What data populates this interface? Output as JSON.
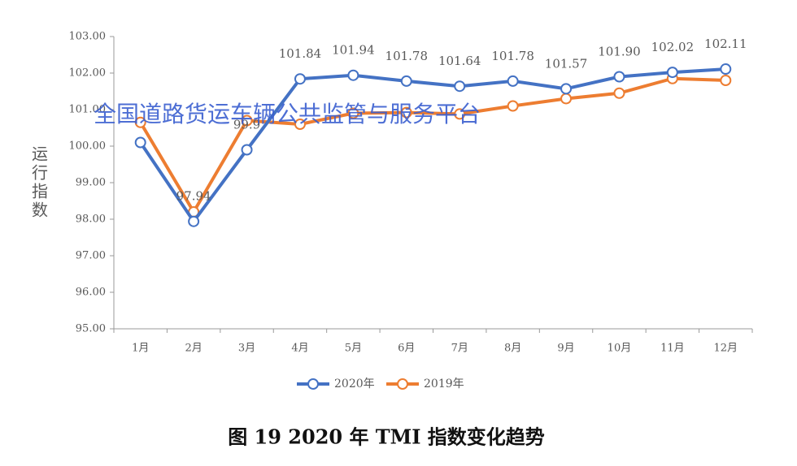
{
  "chart_data": {
    "type": "line",
    "y_label": "运行指数",
    "caption": "图 19  2020 年 TMI 指数变化趋势",
    "watermark": "全国道路货运车辆公共监管与服务平台",
    "categories": [
      "1月",
      "2月",
      "3月",
      "4月",
      "5月",
      "6月",
      "7月",
      "8月",
      "9月",
      "10月",
      "11月",
      "12月"
    ],
    "series": [
      {
        "name": "2020年",
        "color": "#4472c4",
        "values": [
          100.1,
          97.94,
          99.9,
          101.84,
          101.94,
          101.78,
          101.64,
          101.78,
          101.57,
          101.9,
          102.02,
          102.11
        ],
        "value_labels": [
          null,
          "97.94",
          "99.9",
          "101.84",
          "101.94",
          "101.78",
          "101.64",
          "101.78",
          "101.57",
          "101.90",
          "102.02",
          "102.11"
        ]
      },
      {
        "name": "2019年",
        "color": "#ed7d31",
        "values": [
          100.65,
          98.2,
          100.7,
          100.6,
          100.9,
          100.92,
          100.88,
          101.1,
          101.3,
          101.45,
          101.85,
          101.8
        ]
      }
    ],
    "ylim": [
      95,
      103
    ],
    "yticks": [
      {
        "value": 95,
        "label": "95.00"
      },
      {
        "value": 96,
        "label": "96.00"
      },
      {
        "value": 97,
        "label": "97.00"
      },
      {
        "value": 98,
        "label": "98.00"
      },
      {
        "value": 99,
        "label": "99.00"
      },
      {
        "value": 100,
        "label": "100.00"
      },
      {
        "value": 101,
        "label": "101.00"
      },
      {
        "value": 102,
        "label": "102.00"
      },
      {
        "value": 103,
        "label": "103.00"
      }
    ]
  }
}
